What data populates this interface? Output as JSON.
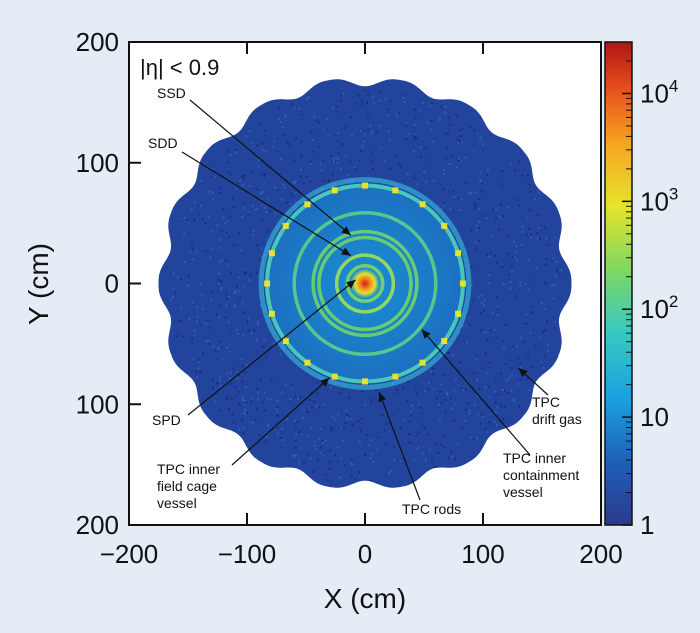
{
  "chart_data": {
    "type": "heatmap",
    "title": "",
    "xlabel": "X (cm)",
    "ylabel": "Y (cm)",
    "xlim": [
      -200,
      200
    ],
    "ylim": [
      -200,
      200
    ],
    "x_ticks": [
      -200,
      -100,
      0,
      100,
      200
    ],
    "x_tick_labels": [
      "−200",
      "−100",
      "0",
      "100",
      "200"
    ],
    "y_ticks": [
      200,
      100,
      0,
      -100,
      -200
    ],
    "y_tick_labels": [
      "200",
      "100",
      "0",
      "100",
      "200"
    ],
    "cut_label": "|η| < 0.9",
    "colorbar": {
      "scale": "log",
      "range": [
        1,
        30000
      ],
      "ticks": [
        1,
        10,
        100,
        1000,
        10000
      ],
      "tick_labels": [
        {
          "base": "1",
          "exp": ""
        },
        {
          "base": "10",
          "exp": ""
        },
        {
          "base": "10",
          "exp": "2"
        },
        {
          "base": "10",
          "exp": "3"
        },
        {
          "base": "10",
          "exp": "4"
        }
      ],
      "colors": [
        "#2a3a8c",
        "#1f5fb8",
        "#1aa0e0",
        "#38c9c0",
        "#7fd860",
        "#e6e42a",
        "#f6a520",
        "#e8501c",
        "#b01515"
      ]
    },
    "distribution": {
      "outer_radius_cm": 175,
      "inner_disk_radius_cm": 85,
      "rings_cm": [
        15,
        24,
        39,
        44,
        60,
        83
      ],
      "tpc_rod_angles_deg": [
        0,
        18,
        36,
        54,
        72,
        90,
        108,
        126,
        144,
        162,
        180,
        198,
        216,
        234,
        252,
        270,
        288,
        306,
        324,
        342
      ]
    },
    "annotations": [
      {
        "id": "ssd",
        "lines": [
          "SSD"
        ],
        "point_cm": [
          -12,
          40
        ]
      },
      {
        "id": "sdd",
        "lines": [
          "SDD"
        ],
        "point_cm": [
          -12,
          23
        ]
      },
      {
        "id": "spd",
        "lines": [
          "SPD"
        ],
        "point_cm": [
          -8,
          3
        ]
      },
      {
        "id": "tpc-inner-field-cage",
        "lines": [
          "TPC inner",
          "field cage",
          "vessel"
        ],
        "point_cm": [
          -30,
          -78
        ]
      },
      {
        "id": "tpc-rods",
        "lines": [
          "TPC rods"
        ],
        "point_cm": [
          12,
          -90
        ]
      },
      {
        "id": "tpc-inner-containment",
        "lines": [
          "TPC inner",
          "containment",
          "vessel"
        ],
        "point_cm": [
          48,
          -38
        ]
      },
      {
        "id": "tpc-drift-gas",
        "lines": [
          "TPC",
          "drift gas"
        ],
        "point_cm": [
          130,
          -70
        ]
      }
    ]
  }
}
